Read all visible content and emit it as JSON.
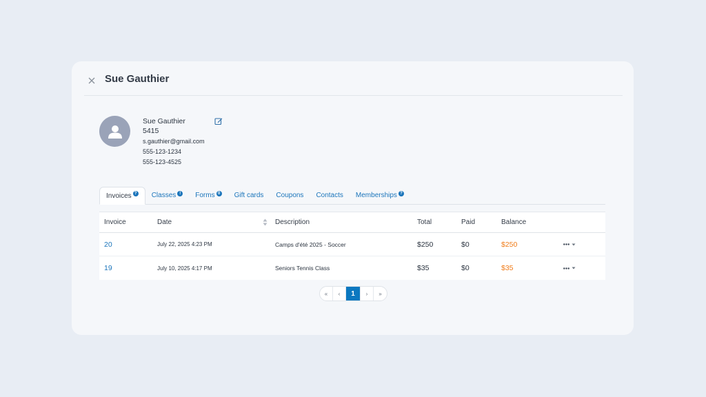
{
  "header": {
    "title": "Sue Gauthier"
  },
  "contact": {
    "name": "Sue Gauthier",
    "id": "5415",
    "email": "s.gauthier@gmail.com",
    "phone1": "555-123-1234",
    "phone2": "555-123-4525"
  },
  "tabs": [
    {
      "label": "Invoices",
      "badge": "?"
    },
    {
      "label": "Classes",
      "badge": "!"
    },
    {
      "label": "Forms",
      "badge": "0"
    },
    {
      "label": "Gift cards"
    },
    {
      "label": "Coupons"
    },
    {
      "label": "Contacts"
    },
    {
      "label": "Memberships",
      "badge": "?"
    }
  ],
  "table": {
    "headers": {
      "invoice": "Invoice",
      "date": "Date",
      "description": "Description",
      "total": "Total",
      "paid": "Paid",
      "balance": "Balance"
    },
    "rows": [
      {
        "invoice": "20",
        "date": "July 22, 2025 4:23 PM",
        "description": "Camps d'été 2025 - Soccer",
        "total": "$250",
        "paid": "$0",
        "balance": "$250"
      },
      {
        "invoice": "19",
        "date": "July 10, 2025 4:17 PM",
        "description": "Seniors Tennis Class",
        "total": "$35",
        "paid": "$0",
        "balance": "$35"
      }
    ]
  },
  "pagination": {
    "first": "«",
    "prev": "‹",
    "current": "1",
    "next": "›",
    "last": "»"
  },
  "colors": {
    "accent": "#1b75bb",
    "balance": "#f07b18",
    "avatar": "#9aa3b8",
    "background": "#e8edf4",
    "card": "#f5f7fa"
  }
}
